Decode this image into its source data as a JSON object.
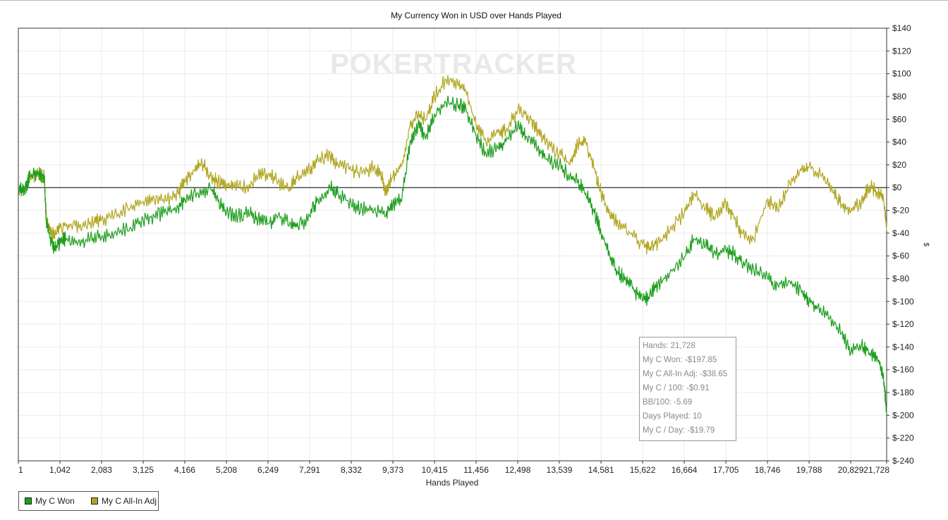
{
  "chart_data": {
    "type": "line",
    "title": "My Currency Won in USD over Hands Played",
    "watermark": "POKERTRACKER",
    "xlabel": "Hands Played",
    "ylabel": "$",
    "x_ticks": [
      "1",
      "1,042",
      "2,083",
      "3,125",
      "4,166",
      "5,208",
      "6,249",
      "7,291",
      "8,332",
      "9,373",
      "10,415",
      "11,456",
      "12,498",
      "13,539",
      "14,581",
      "15,622",
      "16,664",
      "17,705",
      "18,746",
      "19,788",
      "20,829",
      "21,728"
    ],
    "y_ticks": [
      "$140",
      "$120",
      "$100",
      "$80",
      "$60",
      "$40",
      "$20",
      "$0",
      "$-20",
      "$-40",
      "$-60",
      "$-80",
      "$-100",
      "$-120",
      "$-140",
      "$-160",
      "$-180",
      "$-200",
      "$-220",
      "$-240"
    ],
    "xlim": [
      1,
      21728
    ],
    "ylim": [
      -240,
      140
    ],
    "grid": true,
    "legend_position": "bottom-left",
    "series": [
      {
        "name": "My C Won",
        "color": "#1e9e1e",
        "points": [
          [
            1,
            0
          ],
          [
            150,
            -2
          ],
          [
            300,
            10
          ],
          [
            500,
            12
          ],
          [
            650,
            10
          ],
          [
            700,
            -30
          ],
          [
            800,
            -45
          ],
          [
            900,
            -55
          ],
          [
            1000,
            -50
          ],
          [
            1042,
            -48
          ],
          [
            1200,
            -45
          ],
          [
            1500,
            -48
          ],
          [
            1800,
            -45
          ],
          [
            2083,
            -43
          ],
          [
            2400,
            -40
          ],
          [
            2800,
            -35
          ],
          [
            3125,
            -28
          ],
          [
            3400,
            -25
          ],
          [
            3700,
            -22
          ],
          [
            4000,
            -18
          ],
          [
            4166,
            -10
          ],
          [
            4500,
            -5
          ],
          [
            4800,
            0
          ],
          [
            5000,
            -12
          ],
          [
            5208,
            -22
          ],
          [
            5500,
            -25
          ],
          [
            5800,
            -22
          ],
          [
            6000,
            -28
          ],
          [
            6249,
            -32
          ],
          [
            6500,
            -25
          ],
          [
            6800,
            -30
          ],
          [
            7000,
            -35
          ],
          [
            7291,
            -25
          ],
          [
            7500,
            -10
          ],
          [
            7800,
            0
          ],
          [
            8000,
            -5
          ],
          [
            8332,
            -15
          ],
          [
            8600,
            -18
          ],
          [
            8900,
            -20
          ],
          [
            9200,
            -25
          ],
          [
            9373,
            -15
          ],
          [
            9600,
            -10
          ],
          [
            9800,
            40
          ],
          [
            10000,
            55
          ],
          [
            10200,
            45
          ],
          [
            10415,
            65
          ],
          [
            10700,
            75
          ],
          [
            11000,
            72
          ],
          [
            11200,
            70
          ],
          [
            11456,
            45
          ],
          [
            11700,
            30
          ],
          [
            12000,
            35
          ],
          [
            12200,
            40
          ],
          [
            12498,
            55
          ],
          [
            12700,
            45
          ],
          [
            13000,
            35
          ],
          [
            13200,
            25
          ],
          [
            13539,
            20
          ],
          [
            13800,
            10
          ],
          [
            14000,
            5
          ],
          [
            14200,
            -5
          ],
          [
            14400,
            -20
          ],
          [
            14581,
            -40
          ],
          [
            14800,
            -60
          ],
          [
            15000,
            -75
          ],
          [
            15200,
            -80
          ],
          [
            15400,
            -90
          ],
          [
            15622,
            -100
          ],
          [
            15800,
            -95
          ],
          [
            16000,
            -85
          ],
          [
            16300,
            -75
          ],
          [
            16664,
            -62
          ],
          [
            16900,
            -45
          ],
          [
            17200,
            -50
          ],
          [
            17400,
            -58
          ],
          [
            17705,
            -55
          ],
          [
            17900,
            -58
          ],
          [
            18100,
            -65
          ],
          [
            18400,
            -72
          ],
          [
            18746,
            -80
          ],
          [
            19000,
            -85
          ],
          [
            19300,
            -82
          ],
          [
            19600,
            -92
          ],
          [
            19788,
            -100
          ],
          [
            20000,
            -105
          ],
          [
            20300,
            -115
          ],
          [
            20600,
            -128
          ],
          [
            20829,
            -145
          ],
          [
            21100,
            -138
          ],
          [
            21300,
            -145
          ],
          [
            21500,
            -150
          ],
          [
            21650,
            -165
          ],
          [
            21728,
            -198
          ]
        ]
      },
      {
        "name": "My C All-In Adj",
        "color": "#b0a622",
        "points": [
          [
            1,
            0
          ],
          [
            150,
            -2
          ],
          [
            300,
            10
          ],
          [
            500,
            12
          ],
          [
            650,
            10
          ],
          [
            700,
            -30
          ],
          [
            800,
            -38
          ],
          [
            900,
            -42
          ],
          [
            1042,
            -35
          ],
          [
            1300,
            -32
          ],
          [
            1600,
            -35
          ],
          [
            1900,
            -30
          ],
          [
            2083,
            -28
          ],
          [
            2400,
            -25
          ],
          [
            2800,
            -18
          ],
          [
            3125,
            -12
          ],
          [
            3400,
            -10
          ],
          [
            3700,
            -12
          ],
          [
            4000,
            -5
          ],
          [
            4166,
            5
          ],
          [
            4400,
            15
          ],
          [
            4600,
            22
          ],
          [
            4800,
            10
          ],
          [
            5000,
            5
          ],
          [
            5208,
            2
          ],
          [
            5400,
            0
          ],
          [
            5700,
            0
          ],
          [
            6000,
            10
          ],
          [
            6249,
            12
          ],
          [
            6500,
            5
          ],
          [
            6800,
            0
          ],
          [
            7000,
            10
          ],
          [
            7291,
            15
          ],
          [
            7500,
            25
          ],
          [
            7800,
            28
          ],
          [
            8000,
            20
          ],
          [
            8332,
            15
          ],
          [
            8600,
            12
          ],
          [
            8900,
            18
          ],
          [
            9100,
            10
          ],
          [
            9200,
            -5
          ],
          [
            9373,
            10
          ],
          [
            9600,
            20
          ],
          [
            9800,
            55
          ],
          [
            10000,
            62
          ],
          [
            10200,
            60
          ],
          [
            10415,
            80
          ],
          [
            10700,
            95
          ],
          [
            11000,
            90
          ],
          [
            11200,
            85
          ],
          [
            11456,
            55
          ],
          [
            11700,
            40
          ],
          [
            12000,
            48
          ],
          [
            12200,
            50
          ],
          [
            12498,
            68
          ],
          [
            12800,
            62
          ],
          [
            13000,
            50
          ],
          [
            13200,
            40
          ],
          [
            13539,
            30
          ],
          [
            13800,
            20
          ],
          [
            14000,
            38
          ],
          [
            14200,
            40
          ],
          [
            14400,
            18
          ],
          [
            14581,
            -5
          ],
          [
            14800,
            -25
          ],
          [
            15000,
            -30
          ],
          [
            15300,
            -40
          ],
          [
            15622,
            -50
          ],
          [
            15800,
            -55
          ],
          [
            16000,
            -48
          ],
          [
            16300,
            -38
          ],
          [
            16664,
            -22
          ],
          [
            16900,
            -5
          ],
          [
            17200,
            -18
          ],
          [
            17400,
            -25
          ],
          [
            17705,
            -15
          ],
          [
            17900,
            -25
          ],
          [
            18100,
            -40
          ],
          [
            18400,
            -45
          ],
          [
            18746,
            -10
          ],
          [
            19000,
            -20
          ],
          [
            19300,
            5
          ],
          [
            19600,
            15
          ],
          [
            19788,
            18
          ],
          [
            20100,
            10
          ],
          [
            20400,
            -5
          ],
          [
            20600,
            -15
          ],
          [
            20829,
            -22
          ],
          [
            21100,
            -12
          ],
          [
            21300,
            2
          ],
          [
            21500,
            -5
          ],
          [
            21650,
            -10
          ],
          [
            21728,
            -38
          ]
        ]
      }
    ]
  },
  "tooltip": {
    "lines": [
      "Hands: 21,728",
      "My C Won: -$197.85",
      "My C All-In Adj: -$38.65",
      "My C / 100: -$0.91",
      "BB/100: -5.69",
      "Days Played: 10",
      "My C / Day: -$19.79"
    ]
  },
  "legend": {
    "items": [
      {
        "label": "My C Won",
        "color": "#1e9e1e"
      },
      {
        "label": "My C All-In Adj",
        "color": "#b0a622"
      }
    ]
  }
}
